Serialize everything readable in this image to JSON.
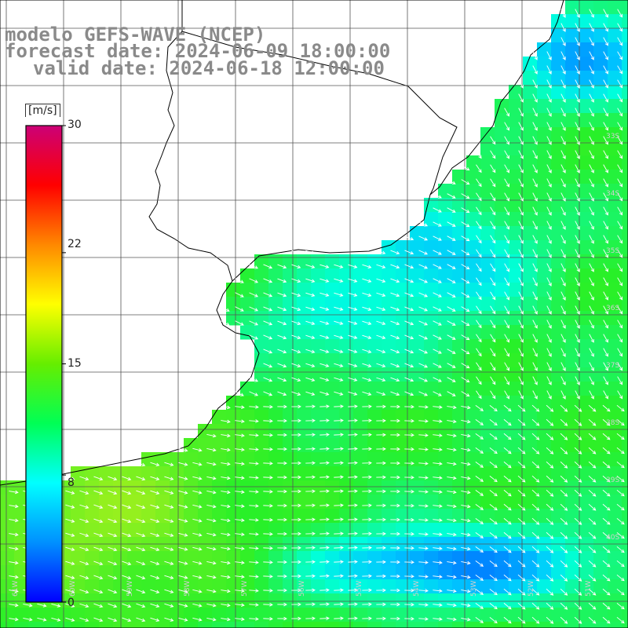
{
  "title": {
    "line1": "modelo GEFS-WAVE (NCEP)",
    "line2": "forecast date: 2024-06-09 18:00:00",
    "line3": "valid date: 2024-06-18 12:00:00"
  },
  "colorbar": {
    "unit": "[m/s]",
    "ticks": [
      {
        "value": 30,
        "label": "30"
      },
      {
        "value": 22,
        "label": "22"
      },
      {
        "value": 15,
        "label": "15"
      },
      {
        "value": 8,
        "label": "8"
      },
      {
        "value": 0,
        "label": "0"
      }
    ],
    "colors": [
      "#0000ff",
      "#0090ff",
      "#00ffff",
      "#00ff55",
      "#66ee00",
      "#ffff00",
      "#ff8800",
      "#ff0000",
      "#cc0077"
    ]
  },
  "map": {
    "variable": "wind speed",
    "ocean_color_low": "#0060ff",
    "ocean_color_mid": "#00ffcc",
    "ocean_color_high": "#33ee11",
    "land_color": "#ffffff",
    "coast_color": "#000000",
    "grid_color": "#555555",
    "arrow_color": "#ffffff",
    "lon_labels": [
      "61W",
      "60W",
      "59W",
      "58W",
      "57W",
      "56W",
      "55W",
      "54W",
      "53W",
      "52W",
      "51W"
    ],
    "lat_labels": [
      "33S",
      "34S",
      "35S",
      "36S",
      "37S",
      "38S",
      "39S",
      "40S"
    ]
  }
}
